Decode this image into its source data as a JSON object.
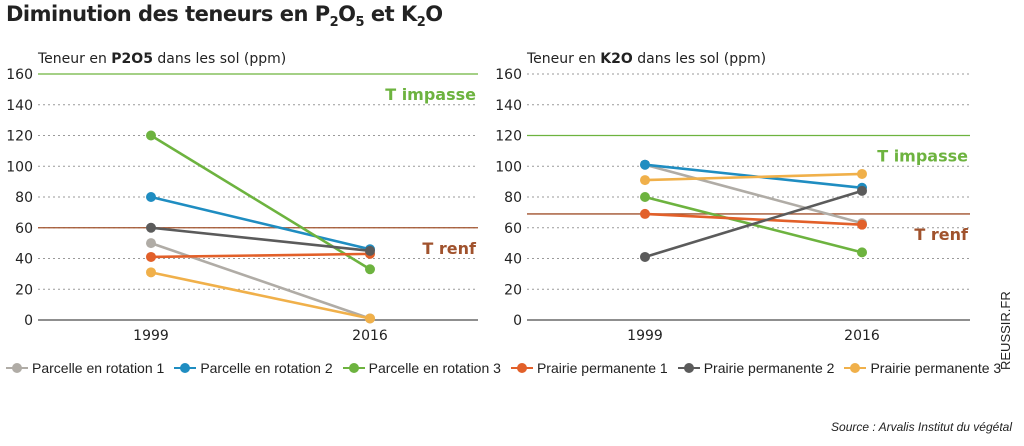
{
  "title": {
    "pre": "Diminution des teneurs en P",
    "sub1": "2",
    "mid1": "O",
    "sub2": "5",
    "mid2": " et K",
    "sub3": "2",
    "post": "O"
  },
  "chart_data": [
    {
      "type": "line",
      "panel_label": {
        "pre": "Teneur en ",
        "bold": "P2O5",
        "post": " dans les sol (ppm)"
      },
      "x": [
        "1999",
        "2016"
      ],
      "ylim": [
        0,
        160
      ],
      "yticks": [
        0,
        20,
        40,
        60,
        80,
        100,
        120,
        140,
        160
      ],
      "grid": true,
      "series": [
        {
          "name": "Parcelle en rotation 1",
          "values": [
            50,
            1
          ]
        },
        {
          "name": "Parcelle en rotation 2",
          "values": [
            80,
            46
          ]
        },
        {
          "name": "Parcelle en rotation 3",
          "values": [
            120,
            33
          ]
        },
        {
          "name": "Prairie permanente 1",
          "values": [
            41,
            43
          ]
        },
        {
          "name": "Prairie permanente 2",
          "values": [
            60,
            45
          ]
        },
        {
          "name": "Prairie permanente 3",
          "values": [
            31,
            1
          ]
        }
      ],
      "thresholds": [
        {
          "label": "T impasse",
          "value": 160,
          "color": "#6db33f"
        },
        {
          "label": "T renf",
          "value": 60,
          "color": "#a0522d"
        }
      ]
    },
    {
      "type": "line",
      "panel_label": {
        "pre": "Teneur en ",
        "bold": "K2O",
        "post": " dans les sol (ppm)"
      },
      "x": [
        "1999",
        "2016"
      ],
      "ylim": [
        0,
        160
      ],
      "yticks": [
        0,
        20,
        40,
        60,
        80,
        100,
        120,
        140,
        160
      ],
      "grid": true,
      "series": [
        {
          "name": "Parcelle en rotation 1",
          "values": [
            101,
            63
          ]
        },
        {
          "name": "Parcelle en rotation 2",
          "values": [
            101,
            86
          ]
        },
        {
          "name": "Parcelle en rotation 3",
          "values": [
            80,
            44
          ]
        },
        {
          "name": "Prairie permanente 1",
          "values": [
            69,
            62
          ]
        },
        {
          "name": "Prairie permanente 2",
          "values": [
            41,
            84
          ]
        },
        {
          "name": "Prairie permanente 3",
          "values": [
            91,
            95
          ]
        }
      ],
      "thresholds": [
        {
          "label": "T impasse",
          "value": 120,
          "color": "#6db33f"
        },
        {
          "label": "T renf",
          "value": 69,
          "color": "#a0522d"
        }
      ]
    }
  ],
  "series_colors": [
    "#b0aca6",
    "#1f8dc1",
    "#6db33f",
    "#e2602a",
    "#5b5b5b",
    "#f0b04a"
  ],
  "legend": [
    "Parcelle en rotation 1",
    "Parcelle en rotation 2",
    "Parcelle en rotation 3",
    "Prairie permanente 1",
    "Prairie permanente 2",
    "Prairie permanente 3"
  ],
  "credit": "REUSSIR.FR",
  "source": "Source : Arvalis Institut du végétal"
}
